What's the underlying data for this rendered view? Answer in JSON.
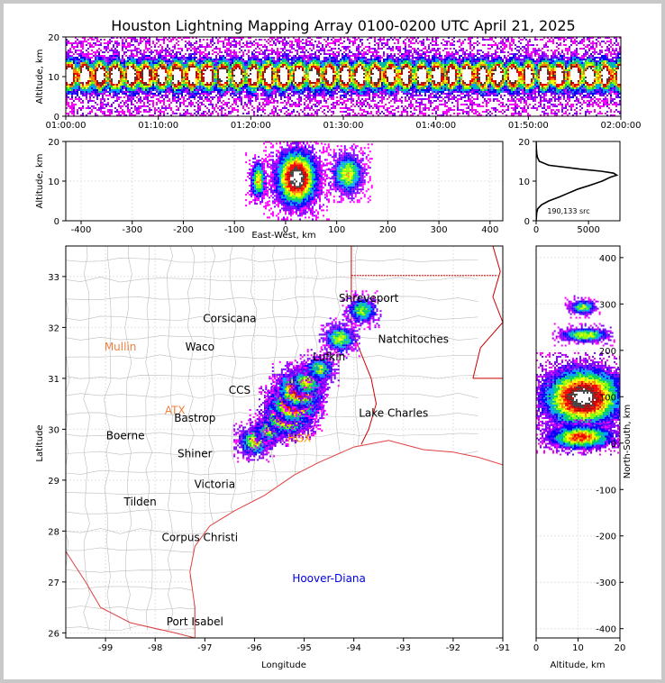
{
  "title": "Houston Lightning Mapping Array 0100-0200 UTC April 21, 2025",
  "colors": {
    "frame_border": "#c8c8c8",
    "state_lines": "#cc0000",
    "county_lines": "#bdbdbd",
    "coast": "#e04040",
    "city_default": "#000000",
    "city_mullin": "#f08040",
    "city_atx": "#f08040",
    "city_hgx": "#ffa500",
    "city_hoover": "#0000dd",
    "density_scale": [
      "#ff00ff",
      "#8000ff",
      "#0000ff",
      "#00a0ff",
      "#00d060",
      "#80ff00",
      "#ffff00",
      "#ff8000",
      "#ff0000",
      "#c00000",
      "#404040",
      "#ffffff"
    ]
  },
  "chart_data": [
    {
      "id": "time_height",
      "type": "heatmap",
      "xlabel": "",
      "ylabel": "Altitude, km",
      "xticks": [
        "01:00:00",
        "01:10:00",
        "01:20:00",
        "01:30:00",
        "01:40:00",
        "01:50:00",
        "02:00:00"
      ],
      "xlim_minutes": [
        0,
        60
      ],
      "ylim": [
        0,
        20
      ],
      "yticks": [
        0,
        10,
        20
      ],
      "core_altitude_km": [
        8,
        13
      ],
      "grid": false
    },
    {
      "id": "ew_altitude",
      "type": "heatmap",
      "xlabel": "East-West, km",
      "ylabel": "Altitude, km",
      "xlim": [
        -430,
        425
      ],
      "xticks": [
        -400,
        -300,
        -200,
        -100,
        0,
        100,
        200,
        300,
        400
      ],
      "ylim": [
        0,
        20
      ],
      "yticks": [
        0,
        10,
        20
      ],
      "clusters_km": [
        {
          "x": [
            -70,
            -40
          ],
          "z": [
            6,
            15
          ],
          "peak": 0.6
        },
        {
          "x": [
            -20,
            60
          ],
          "z": [
            4,
            18
          ],
          "peak": 1.0
        },
        {
          "x": [
            90,
            150
          ],
          "z": [
            7,
            17
          ],
          "peak": 0.55
        }
      ],
      "grid": true
    },
    {
      "id": "altitude_histogram",
      "type": "line",
      "xlim": [
        0,
        8000
      ],
      "xticks": [
        0,
        5000
      ],
      "ylim": [
        0,
        20
      ],
      "yticks": [
        0,
        10,
        20
      ],
      "annotation": "190,133 src",
      "series": [
        {
          "altitude": [
            0,
            2,
            3,
            4,
            5,
            6,
            7,
            8,
            9,
            10,
            11,
            11.5,
            12,
            12.5,
            13,
            14,
            15,
            16,
            17,
            18,
            20
          ],
          "count": [
            0,
            50,
            150,
            500,
            1200,
            2200,
            3100,
            4000,
            5200,
            6300,
            7100,
            7700,
            7400,
            6200,
            4300,
            1200,
            300,
            120,
            60,
            30,
            0
          ]
        }
      ]
    },
    {
      "id": "plan_view",
      "type": "scatter",
      "xlabel": "Longitude",
      "ylabel": "Latitude",
      "xlim": [
        -99.8,
        -91
      ],
      "ylim": [
        25.9,
        33.6
      ],
      "xticks": [
        -99,
        -98,
        -97,
        -96,
        -95,
        -94,
        -93,
        -92,
        -91
      ],
      "yticks": [
        26,
        27,
        28,
        29,
        30,
        31,
        32,
        33
      ],
      "grid": true,
      "storm_band_lonlat": [
        [
          -96.0,
          29.78
        ],
        [
          -95.7,
          30.0
        ],
        [
          -95.35,
          30.3
        ],
        [
          -95.2,
          30.55
        ],
        [
          -95.1,
          30.8
        ],
        [
          -94.95,
          30.95
        ],
        [
          -94.7,
          31.2
        ],
        [
          -94.3,
          31.8
        ],
        [
          -93.85,
          32.35
        ]
      ],
      "cities": [
        {
          "name": "Shreveport",
          "lon": -93.7,
          "lat": 32.5,
          "color": "city_default"
        },
        {
          "name": "Corsicana",
          "lon": -96.5,
          "lat": 32.1,
          "color": "city_default"
        },
        {
          "name": "Mullin",
          "lon": -98.7,
          "lat": 31.55,
          "color": "city_mullin"
        },
        {
          "name": "Waco",
          "lon": -97.1,
          "lat": 31.55,
          "color": "city_default"
        },
        {
          "name": "Natchitoches",
          "lon": -92.8,
          "lat": 31.7,
          "color": "city_default"
        },
        {
          "name": "Lufkin",
          "lon": -94.5,
          "lat": 31.35,
          "color": "city_default"
        },
        {
          "name": "CCS",
          "lon": -96.3,
          "lat": 30.7,
          "color": "city_default"
        },
        {
          "name": "ATX",
          "lon": -97.6,
          "lat": 30.3,
          "color": "city_atx"
        },
        {
          "name": "Bastrop",
          "lon": -97.2,
          "lat": 30.15,
          "color": "city_default"
        },
        {
          "name": "Lake Charles",
          "lon": -93.2,
          "lat": 30.25,
          "color": "city_default"
        },
        {
          "name": "Boerne",
          "lon": -98.6,
          "lat": 29.8,
          "color": "city_default"
        },
        {
          "name": "HGX",
          "lon": -95.1,
          "lat": 29.75,
          "color": "city_hgx"
        },
        {
          "name": "Shiner",
          "lon": -97.2,
          "lat": 29.45,
          "color": "city_default"
        },
        {
          "name": "Victoria",
          "lon": -96.8,
          "lat": 28.85,
          "color": "city_default"
        },
        {
          "name": "Tilden",
          "lon": -98.3,
          "lat": 28.5,
          "color": "city_default"
        },
        {
          "name": "Corpus Christi",
          "lon": -97.1,
          "lat": 27.8,
          "color": "city_default"
        },
        {
          "name": "Hoover-Diana",
          "lon": -94.5,
          "lat": 27.0,
          "color": "city_hoover"
        },
        {
          "name": "Port Isabel",
          "lon": -97.2,
          "lat": 26.15,
          "color": "city_default"
        }
      ]
    },
    {
      "id": "altitude_ns",
      "type": "heatmap",
      "xlabel": "Altitude, km",
      "ylabel": "North-South, km",
      "xlim": [
        0,
        20
      ],
      "xticks": [
        0,
        10,
        20
      ],
      "ylim": [
        -420,
        425
      ],
      "yticks": [
        -400,
        -300,
        -200,
        -100,
        0,
        100,
        200,
        300,
        400
      ],
      "clusters_km": [
        {
          "ns": [
            280,
            310
          ],
          "z": [
            8,
            14
          ],
          "peak": 0.5
        },
        {
          "ns": [
            220,
            250
          ],
          "z": [
            6,
            17
          ],
          "peak": 0.55
        },
        {
          "ns": [
            40,
            160
          ],
          "z": [
            2,
            20
          ],
          "peak": 1.0
        },
        {
          "ns": [
            -10,
            40
          ],
          "z": [
            3,
            18
          ],
          "peak": 0.7
        }
      ],
      "grid": true
    }
  ]
}
